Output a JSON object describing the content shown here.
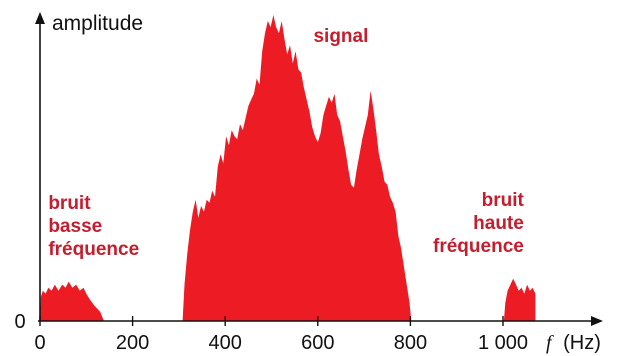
{
  "chart_data": {
    "type": "area",
    "ylabel": "amplitude",
    "xlabel_symbol": "f",
    "xlabel_unit": "(Hz)",
    "y_zero_label": "0",
    "xlim": [
      0,
      1070
    ],
    "ylim": [
      0,
      100
    ],
    "x_ticks": [
      0,
      200,
      400,
      600,
      800,
      1000
    ],
    "x_tick_labels": [
      "0",
      "200",
      "400",
      "600",
      "800",
      "1 000"
    ],
    "fill_color": "#ed1c24",
    "annotation_color": "#c41e2e",
    "annotations": [
      {
        "lines": [
          "signal"
        ],
        "x": 650,
        "y": 92,
        "align": "middle"
      },
      {
        "lines": [
          "bruit",
          "basse",
          "fréquence"
        ],
        "x": 18,
        "y": 37,
        "align": "start"
      },
      {
        "lines": [
          "bruit",
          "haute",
          "fréquence"
        ],
        "x": 1045,
        "y": 38,
        "align": "end"
      }
    ],
    "series": [
      {
        "points": [
          [
            0,
            0
          ],
          [
            2,
            8
          ],
          [
            6,
            10
          ],
          [
            12,
            9
          ],
          [
            18,
            11
          ],
          [
            25,
            10
          ],
          [
            32,
            12
          ],
          [
            40,
            10
          ],
          [
            48,
            12
          ],
          [
            55,
            11
          ],
          [
            62,
            13
          ],
          [
            70,
            11
          ],
          [
            78,
            12
          ],
          [
            86,
            10
          ],
          [
            94,
            11
          ],
          [
            100,
            9
          ],
          [
            108,
            7
          ],
          [
            118,
            5
          ],
          [
            130,
            3
          ],
          [
            138,
            0
          ],
          [
            308,
            0
          ],
          [
            312,
            12
          ],
          [
            318,
            22
          ],
          [
            324,
            30
          ],
          [
            330,
            36
          ],
          [
            336,
            40
          ],
          [
            342,
            34
          ],
          [
            348,
            38
          ],
          [
            354,
            36
          ],
          [
            360,
            40
          ],
          [
            366,
            39
          ],
          [
            372,
            43
          ],
          [
            378,
            41
          ],
          [
            384,
            51
          ],
          [
            390,
            55
          ],
          [
            396,
            52
          ],
          [
            402,
            61
          ],
          [
            408,
            58
          ],
          [
            414,
            63
          ],
          [
            420,
            61
          ],
          [
            426,
            60
          ],
          [
            432,
            65
          ],
          [
            438,
            63
          ],
          [
            444,
            67
          ],
          [
            450,
            71
          ],
          [
            456,
            73
          ],
          [
            462,
            75
          ],
          [
            468,
            80
          ],
          [
            474,
            78
          ],
          [
            480,
            89
          ],
          [
            486,
            95
          ],
          [
            492,
            99
          ],
          [
            498,
            97
          ],
          [
            504,
            101
          ],
          [
            510,
            97
          ],
          [
            516,
            95
          ],
          [
            522,
            99
          ],
          [
            528,
            93
          ],
          [
            534,
            88
          ],
          [
            540,
            91
          ],
          [
            546,
            85
          ],
          [
            552,
            89
          ],
          [
            558,
            83
          ],
          [
            564,
            82
          ],
          [
            570,
            77
          ],
          [
            576,
            73
          ],
          [
            582,
            69
          ],
          [
            588,
            64
          ],
          [
            594,
            61
          ],
          [
            600,
            59
          ],
          [
            606,
            62
          ],
          [
            612,
            68
          ],
          [
            618,
            71
          ],
          [
            624,
            74
          ],
          [
            630,
            72
          ],
          [
            636,
            75
          ],
          [
            642,
            68
          ],
          [
            648,
            66
          ],
          [
            654,
            61
          ],
          [
            660,
            56
          ],
          [
            666,
            50
          ],
          [
            672,
            45
          ],
          [
            678,
            44
          ],
          [
            684,
            50
          ],
          [
            690,
            55
          ],
          [
            696,
            60
          ],
          [
            702,
            64
          ],
          [
            708,
            68
          ],
          [
            714,
            76
          ],
          [
            720,
            70
          ],
          [
            726,
            63
          ],
          [
            732,
            55
          ],
          [
            738,
            51
          ],
          [
            744,
            46
          ],
          [
            750,
            45
          ],
          [
            756,
            41
          ],
          [
            762,
            39
          ],
          [
            768,
            36
          ],
          [
            774,
            28
          ],
          [
            780,
            24
          ],
          [
            786,
            18
          ],
          [
            792,
            12
          ],
          [
            798,
            6
          ],
          [
            802,
            0
          ],
          [
            1002,
            0
          ],
          [
            1005,
            6
          ],
          [
            1010,
            10
          ],
          [
            1016,
            12
          ],
          [
            1022,
            14
          ],
          [
            1028,
            12
          ],
          [
            1034,
            10
          ],
          [
            1040,
            11
          ],
          [
            1046,
            9
          ],
          [
            1052,
            12
          ],
          [
            1058,
            10
          ],
          [
            1064,
            11
          ],
          [
            1070,
            9
          ],
          [
            1070,
            0
          ]
        ]
      }
    ]
  }
}
